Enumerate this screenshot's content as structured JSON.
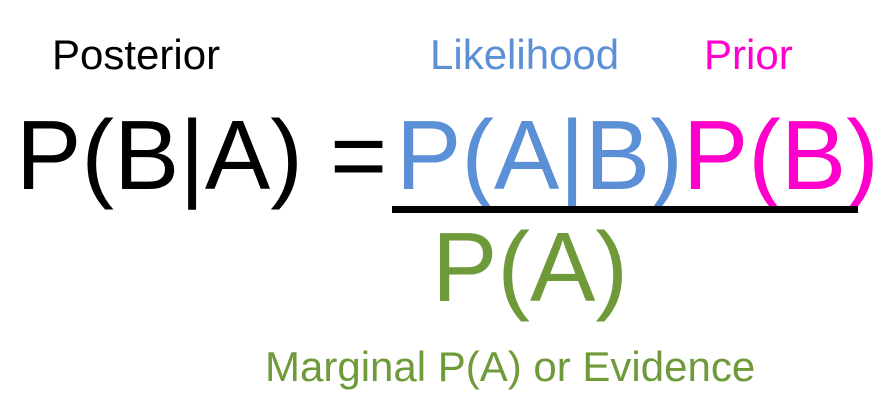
{
  "labels": {
    "posterior": "Posterior",
    "likelihood": "Likelihood",
    "prior": "Prior",
    "evidence": "Marginal P(A) or Evidence"
  },
  "equation": {
    "lhs": "P(B|A) =",
    "numerator_likelihood": "P(A|B)",
    "numerator_prior": "P(B)",
    "denominator": "P(A)"
  },
  "colors": {
    "posterior": "#000000",
    "likelihood": "#5b8fd6",
    "prior": "#ff00cc",
    "evidence": "#6f9a3a"
  }
}
